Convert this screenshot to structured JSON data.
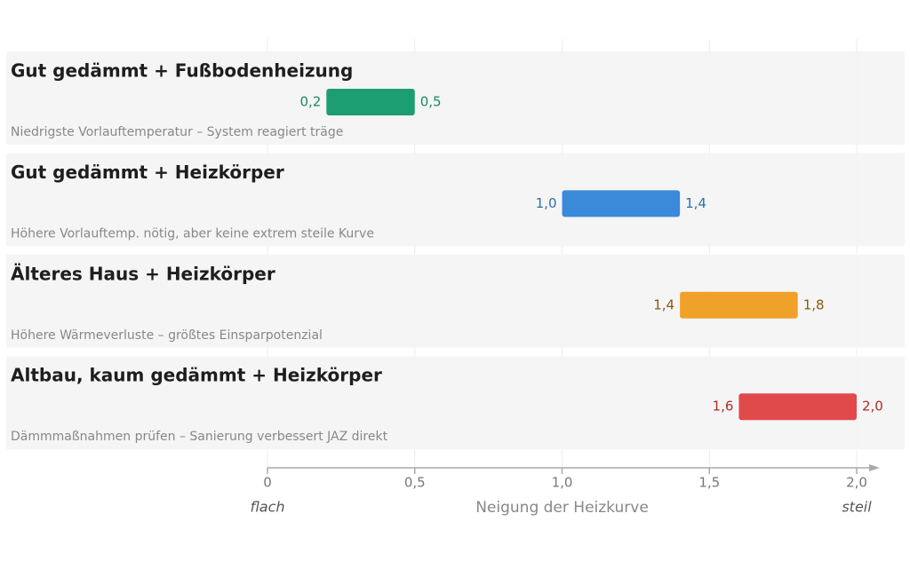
{
  "chart_data": {
    "type": "range-bar",
    "categories": [
      "Gut gedämmt + Fußbodenheizung",
      "Gut gedämmt + Heizkörper",
      "Älteres Haus + Heizkörper",
      "Altbau, kaum gedämmt + Heizkörper"
    ],
    "notes": [
      "Niedrigste Vorlauftemperatur – System reagiert träge",
      "Höhere Vorlauftemp. nötig, aber keine extrem steile Kurve",
      "Höhere Wärmeverluste – größtes Einsparpotenzial",
      "Dämmmaßnahmen prüfen – Sanierung verbessert JAZ direkt"
    ],
    "low": [
      0.2,
      1.0,
      1.4,
      1.6
    ],
    "high": [
      0.5,
      1.4,
      1.8,
      2.0
    ],
    "low_labels": [
      "0,2",
      "1,0",
      "1,4",
      "1,6"
    ],
    "high_labels": [
      "0,5",
      "1,4",
      "1,8",
      "2,0"
    ],
    "colors": [
      "#1c9e72",
      "#3a8ad9",
      "#f0a12a",
      "#e04a4a"
    ],
    "label_colors": [
      "#1a8a5a",
      "#2f6ea8",
      "#8a5a10",
      "#b02a2a"
    ],
    "xlim": [
      0,
      2
    ],
    "xticks": [
      0,
      {
        "value": 0.5,
        "label": "0,5"
      },
      {
        "value": 1,
        "label": "1,0"
      },
      {
        "value": 1.5,
        "label": "1,5"
      },
      {
        "value": 2,
        "label": "2,0"
      }
    ],
    "xlabel": "Neigung der Heizkurve",
    "annotations": [
      "flach",
      "steil"
    ],
    "grid": true
  }
}
